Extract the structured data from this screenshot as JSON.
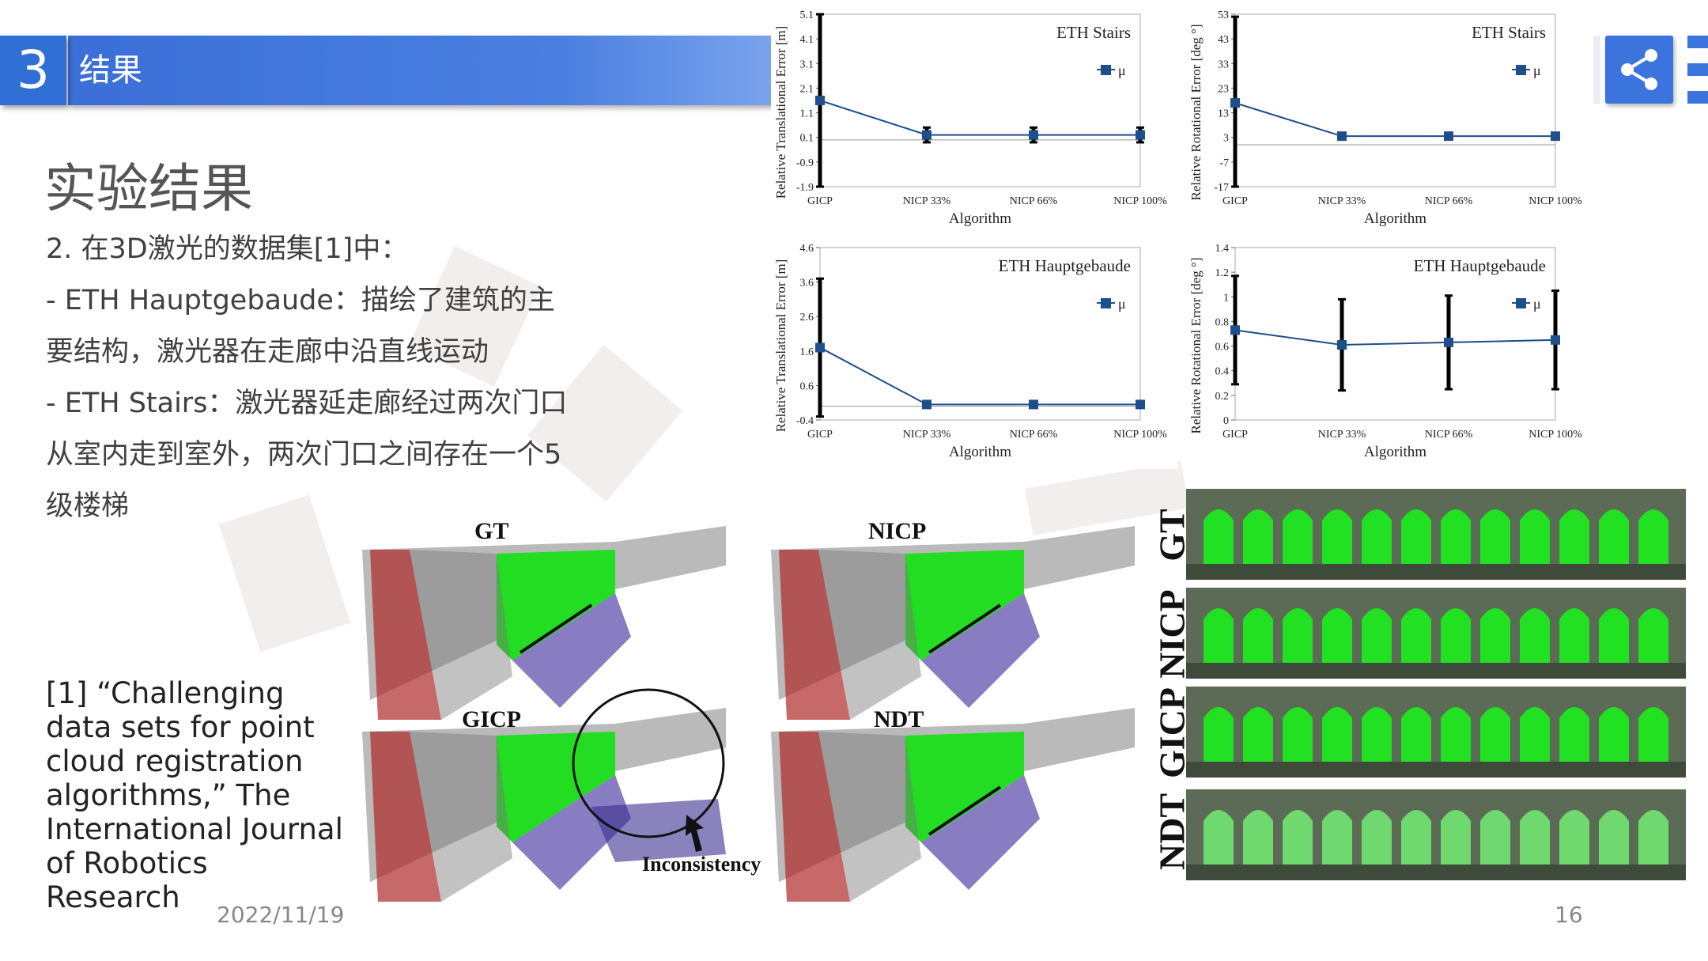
{
  "header": {
    "section_number": "3",
    "section_title": "结果"
  },
  "icons": {
    "share": "share-icon",
    "menu": "menu-icon"
  },
  "colors": {
    "accent": "#2f6fd6",
    "series": "#1f4e8c",
    "cloud_green": "#22dd22"
  },
  "slide": {
    "title": "实验结果",
    "lines": [
      "2. 在3D激光的数据集[1]中：",
      "- ETH Hauptgebaude：描绘了建筑的主",
      "要结构，激光器在走廊中沿直线运动",
      "- ETH Stairs：激光器延走廊经过两次门口",
      "从室内走到室外，两次门口之间存在一个5",
      "级楼梯"
    ],
    "reference": "[1]  “Challenging data sets for point cloud registration algorithms,”  The International Journal of Robotics Research",
    "date": "2022/11/19",
    "page": "16"
  },
  "figure_labels": {
    "gt": "GT",
    "nicp": "NICP",
    "gicp": "GICP",
    "ndt": "NDT",
    "inconsistency": "Inconsistency"
  },
  "chart_data": [
    {
      "type": "line",
      "title": "ETH Stairs",
      "xlabel": "Algorithm",
      "ylabel": "Relative Translational Error [m]",
      "categories": [
        "GICP",
        "NICP 33%",
        "NICP 66%",
        "NICP 100%"
      ],
      "yticks": [
        "5.1",
        "4.1",
        "3.1",
        "2.1",
        "1.1",
        "0.1",
        "-0.9",
        "-1.9"
      ],
      "ylim": [
        -1.9,
        5.1
      ],
      "series": [
        {
          "name": "μ",
          "values": [
            1.6,
            0.2,
            0.2,
            0.2
          ],
          "err": [
            3.5,
            0.3,
            0.3,
            0.3
          ]
        }
      ],
      "legend": "top-right",
      "grid": false
    },
    {
      "type": "line",
      "title": "ETH Stairs",
      "xlabel": "Algorithm",
      "ylabel": "Relative Rotational Error [deg °]",
      "categories": [
        "GICP",
        "NICP 33%",
        "NICP 66%",
        "NICP 100%"
      ],
      "yticks": [
        "53",
        "43",
        "33",
        "23",
        "13",
        "3",
        "-7",
        "-17"
      ],
      "ylim": [
        -17,
        53
      ],
      "series": [
        {
          "name": "μ",
          "values": [
            17,
            3.5,
            3.5,
            3.5
          ],
          "err": [
            35,
            0.5,
            0.5,
            0.5
          ]
        }
      ],
      "legend": "top-right",
      "grid": false
    },
    {
      "type": "line",
      "title": "ETH Hauptgebaude",
      "xlabel": "Algorithm",
      "ylabel": "Relative Translational Error [m]",
      "categories": [
        "GICP",
        "NICP 33%",
        "NICP 66%",
        "NICP 100%"
      ],
      "yticks": [
        "4.6",
        "3.6",
        "2.6",
        "1.6",
        "0.6",
        "-0.4"
      ],
      "ylim": [
        -0.4,
        4.6
      ],
      "series": [
        {
          "name": "μ",
          "values": [
            1.7,
            0.05,
            0.05,
            0.05
          ],
          "err": [
            2.0,
            0.05,
            0.05,
            0.05
          ]
        }
      ],
      "legend": "top-right",
      "grid": false
    },
    {
      "type": "line",
      "title": "ETH Hauptgebaude",
      "xlabel": "Algorithm",
      "ylabel": "Relative Rotational Error [deg °]",
      "categories": [
        "GICP",
        "NICP 33%",
        "NICP 66%",
        "NICP 100%"
      ],
      "yticks": [
        "1.4",
        "1.2",
        "1",
        "0.8",
        "0.6",
        "0.4",
        "0.2",
        "0"
      ],
      "ylim": [
        0,
        1.4
      ],
      "series": [
        {
          "name": "μ",
          "values": [
            0.73,
            0.61,
            0.63,
            0.65
          ],
          "err": [
            0.44,
            0.37,
            0.38,
            0.4
          ]
        }
      ],
      "legend": "top-right",
      "grid": false
    }
  ]
}
